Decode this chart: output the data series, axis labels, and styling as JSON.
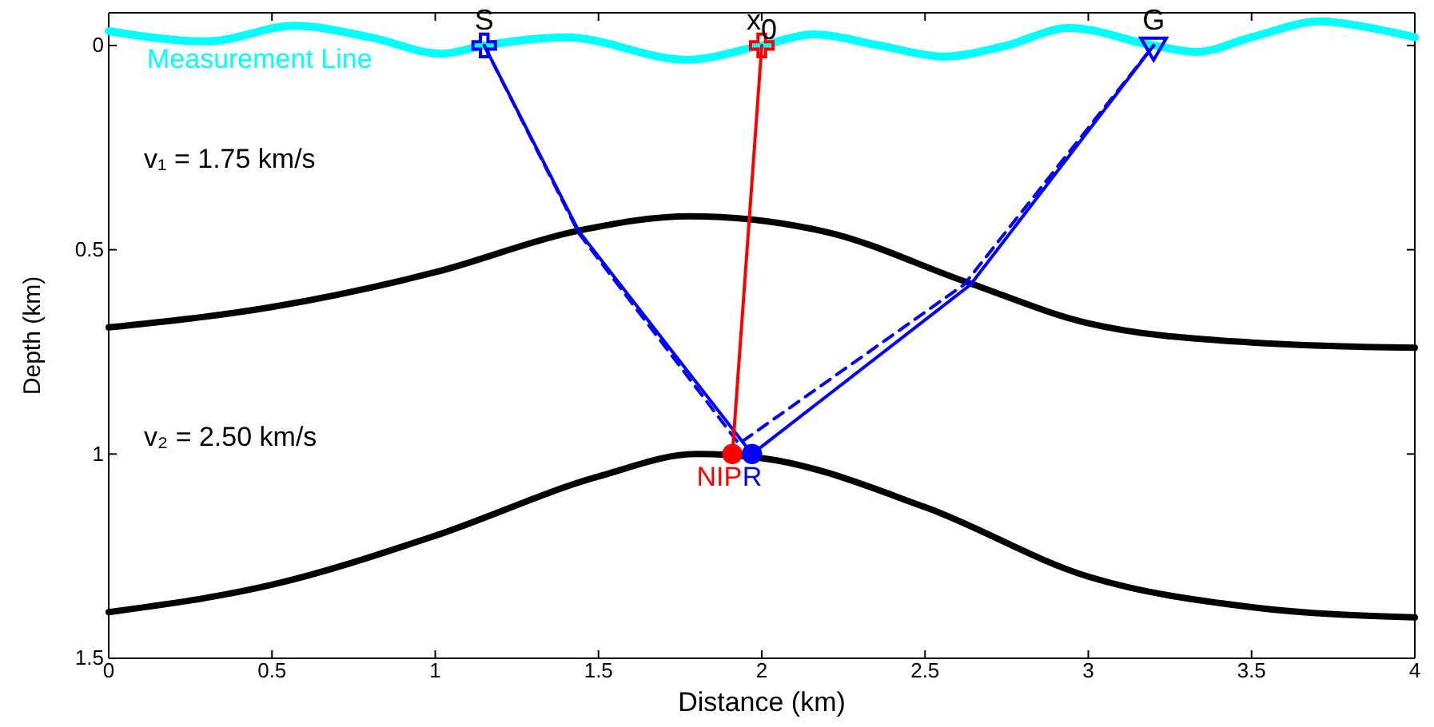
{
  "chart_data": {
    "type": "line",
    "xlabel": "Distance (km)",
    "ylabel": "Depth (km)",
    "xlim": [
      0,
      4
    ],
    "xticks": [
      0,
      0.5,
      1,
      1.5,
      2,
      2.5,
      3,
      3.5,
      4
    ],
    "ylim": [
      1.5,
      -0.08
    ],
    "yticks": [
      0,
      0.5,
      1,
      1.5
    ],
    "grid": false,
    "series": [
      {
        "name": "Measurement Line",
        "color": "#00ffff",
        "x": [
          0,
          0.3,
          0.57,
          0.8,
          1.02,
          1.15,
          1.4,
          1.77,
          2.0,
          2.16,
          2.36,
          2.56,
          2.75,
          2.94,
          3.2,
          3.33,
          3.5,
          3.71,
          3.85,
          4
        ],
        "values": [
          -0.035,
          -0.01,
          -0.048,
          -0.02,
          0.02,
          0,
          -0.02,
          0.035,
          0,
          -0.027,
          0,
          0.027,
          0,
          -0.043,
          0,
          0.016,
          -0.02,
          -0.059,
          -0.045,
          -0.02
        ]
      },
      {
        "color": "#000000",
        "x": [
          0,
          0.5,
          1,
          1.44,
          1.78,
          2.2,
          2.63,
          3,
          3.5,
          4
        ],
        "values": [
          0.69,
          0.64,
          0.555,
          0.453,
          0.418,
          0.457,
          0.58,
          0.68,
          0.727,
          0.74
        ]
      },
      {
        "color": "#000000",
        "x": [
          0,
          0.5,
          1,
          1.5,
          1.8,
          2,
          2.5,
          3,
          3.5,
          4
        ],
        "values": [
          1.387,
          1.32,
          1.2,
          1.055,
          1.0,
          1.01,
          1.13,
          1.3,
          1.375,
          1.4
        ]
      },
      {
        "color": "#0000ff",
        "line_style": "solid",
        "x": [
          1.15,
          1.44,
          1.97,
          2.64,
          3.2
        ],
        "values": [
          0,
          0.455,
          1.0,
          0.585,
          0
        ]
      },
      {
        "color": "#0000ff",
        "line_style": "dashed",
        "x": [
          1.15,
          1.44,
          1.93,
          2.62,
          3.2
        ],
        "values": [
          0,
          0.46,
          0.975,
          0.585,
          0
        ]
      },
      {
        "color": "#ff0000",
        "line_style": "solid",
        "x": [
          2.0,
          1.91
        ],
        "values": [
          0,
          1.0
        ]
      },
      {
        "type": "scatter",
        "marker": "cross",
        "color": "#0000ff",
        "x": [
          1.15
        ],
        "values": [
          0
        ]
      },
      {
        "type": "scatter",
        "marker": "cross",
        "color": "#ff0000",
        "x": [
          2.0
        ],
        "values": [
          0
        ]
      },
      {
        "type": "scatter",
        "marker": "triangle",
        "color": "#0000ff",
        "x": [
          3.2
        ],
        "values": [
          0
        ]
      },
      {
        "type": "scatter",
        "name": "NIP",
        "marker": "circle",
        "color": "#ff0000",
        "x": [
          1.91
        ],
        "values": [
          1.0
        ]
      },
      {
        "type": "scatter",
        "name": "R",
        "marker": "circle",
        "color": "#0000ff",
        "x": [
          1.97
        ],
        "values": [
          1.0
        ]
      }
    ],
    "annotations": [
      {
        "text": "S",
        "x": 1.15,
        "y": 0
      },
      {
        "text": "x$_{0}$",
        "x": 2.0,
        "y": 0
      },
      {
        "text": "G",
        "x": 3.2,
        "y": 0
      },
      "v₁ = 1.75 km/s",
      "v₂ = 2.50 km/s"
    ]
  }
}
